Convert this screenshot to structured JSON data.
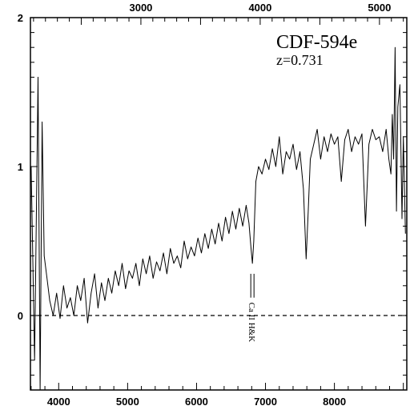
{
  "chart_data": {
    "type": "line",
    "title": "CDF-594e",
    "subtitle": "z=0.731",
    "xlabel": "",
    "ylabel": "",
    "x_bottom": {
      "label": "",
      "ticks": [
        4000,
        5000,
        6000,
        7000,
        8000
      ],
      "range": [
        3590,
        9050
      ]
    },
    "x_top": {
      "label": "",
      "ticks": [
        3000,
        4000,
        5000
      ],
      "range": [
        2074,
        5229
      ]
    },
    "ylim": [
      -0.5,
      2
    ],
    "y_ticks": [
      0,
      1,
      2
    ],
    "grid": false,
    "zero_line": {
      "y": 0,
      "style": "dashed"
    },
    "annotation": {
      "text": "Ca II H&K",
      "x": 6810,
      "y_top": 0.28,
      "y_bottom": 0.12
    },
    "series": [
      {
        "name": "",
        "x": [
          3600,
          3650,
          3700,
          3730,
          3760,
          3790,
          3830,
          3870,
          3920,
          3970,
          4020,
          4070,
          4120,
          4170,
          4220,
          4270,
          4320,
          4370,
          4420,
          4470,
          4520,
          4570,
          4620,
          4670,
          4720,
          4770,
          4820,
          4870,
          4920,
          4970,
          5020,
          5070,
          5120,
          5170,
          5220,
          5270,
          5320,
          5370,
          5420,
          5470,
          5520,
          5570,
          5620,
          5670,
          5720,
          5770,
          5820,
          5870,
          5920,
          5970,
          6020,
          6070,
          6120,
          6170,
          6220,
          6270,
          6320,
          6370,
          6420,
          6470,
          6520,
          6570,
          6620,
          6670,
          6720,
          6760,
          6790,
          6810,
          6830,
          6860,
          6900,
          6950,
          7000,
          7050,
          7100,
          7150,
          7200,
          7250,
          7300,
          7350,
          7400,
          7450,
          7500,
          7550,
          7590,
          7620,
          7650,
          7700,
          7750,
          7800,
          7850,
          7900,
          7950,
          8000,
          8050,
          8100,
          8150,
          8200,
          8250,
          8300,
          8350,
          8400,
          8450,
          8500,
          8550,
          8600,
          8650,
          8700,
          8750,
          8790,
          8820,
          8840,
          8860,
          8880,
          8900,
          8920,
          8950,
          8980,
          9000,
          9030
        ],
        "values": [
          1.0,
          -0.3,
          1.6,
          -0.5,
          1.3,
          0.4,
          0.25,
          0.1,
          0.0,
          0.15,
          -0.02,
          0.2,
          0.05,
          0.12,
          0.0,
          0.2,
          0.1,
          0.25,
          -0.05,
          0.15,
          0.28,
          0.05,
          0.22,
          0.1,
          0.25,
          0.15,
          0.3,
          0.2,
          0.35,
          0.18,
          0.3,
          0.25,
          0.35,
          0.2,
          0.38,
          0.28,
          0.4,
          0.25,
          0.36,
          0.3,
          0.42,
          0.28,
          0.45,
          0.35,
          0.4,
          0.32,
          0.5,
          0.38,
          0.46,
          0.4,
          0.52,
          0.42,
          0.55,
          0.45,
          0.58,
          0.48,
          0.62,
          0.5,
          0.66,
          0.55,
          0.7,
          0.58,
          0.72,
          0.6,
          0.74,
          0.62,
          0.45,
          0.35,
          0.5,
          0.9,
          1.0,
          0.95,
          1.05,
          0.98,
          1.12,
          1.0,
          1.2,
          0.95,
          1.1,
          1.05,
          1.15,
          0.98,
          1.1,
          0.85,
          0.38,
          0.7,
          1.05,
          1.15,
          1.25,
          1.05,
          1.2,
          1.1,
          1.22,
          1.15,
          1.2,
          0.9,
          1.18,
          1.25,
          1.1,
          1.2,
          1.15,
          1.22,
          0.6,
          1.15,
          1.25,
          1.18,
          1.2,
          1.1,
          1.25,
          1.05,
          0.95,
          1.35,
          1.05,
          1.8,
          0.7,
          1.4,
          1.55,
          0.65,
          1.2,
          0.55
        ]
      }
    ]
  }
}
